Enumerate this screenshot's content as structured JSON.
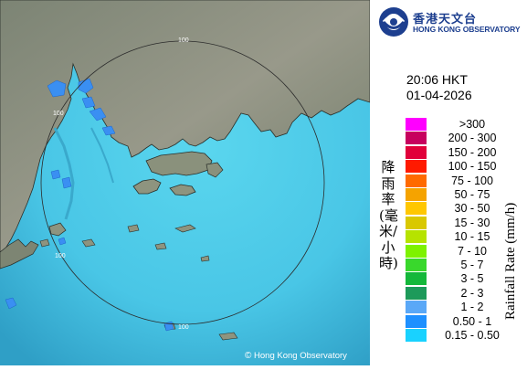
{
  "map": {
    "range_ring_label": "100",
    "copyright_symbol": "©",
    "copyright_text": "Hong Kong Observatory",
    "colors": {
      "sea_light": "#4fd0ea",
      "sea_dark": "#2d9ec4",
      "land_light": "#8f9484",
      "land_dark": "#5d6858",
      "radar_rings": "#2c2c2c",
      "rain_light": "#3a8ff2"
    }
  },
  "header": {
    "logo_chinese": "香港天文台",
    "logo_english": "HONG KONG OBSERVATORY",
    "time": "20:06 HKT",
    "date": "01-04-2026"
  },
  "legend": {
    "title_chinese": "降雨率(毫米/小時)",
    "title_english": "Rainfall Rate (mm/h)",
    "items": [
      {
        "label": ">300",
        "color": "#ff00ff"
      },
      {
        "label": "200 - 300",
        "color": "#c7005e"
      },
      {
        "label": "150 - 200",
        "color": "#e1003a"
      },
      {
        "label": "100 - 150",
        "color": "#ff1a00"
      },
      {
        "label": "75 - 100",
        "color": "#ff6a00"
      },
      {
        "label": "50 - 75",
        "color": "#f5a300"
      },
      {
        "label": "30 - 50",
        "color": "#ffc700"
      },
      {
        "label": "15 - 30",
        "color": "#d9c800"
      },
      {
        "label": "10 - 15",
        "color": "#b6e300"
      },
      {
        "label": "7 - 10",
        "color": "#7ef200"
      },
      {
        "label": "5 - 7",
        "color": "#39d82c"
      },
      {
        "label": "3 - 5",
        "color": "#14b83a"
      },
      {
        "label": "2 - 3",
        "color": "#1d9a5a"
      },
      {
        "label": "1 - 2",
        "color": "#5aa8f7"
      },
      {
        "label": "0.50 - 1",
        "color": "#1e90ff"
      },
      {
        "label": "0.15 - 0.50",
        "color": "#19d2ff"
      }
    ]
  }
}
